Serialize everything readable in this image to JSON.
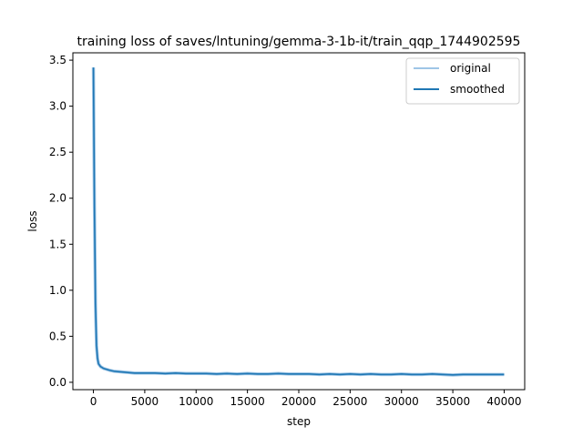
{
  "chart_data": {
    "type": "line",
    "title": "training loss of saves/lntuning/gemma-3-1b-it/train_qqp_1744902595",
    "xlabel": "step",
    "ylabel": "loss",
    "xlim": [
      -2000,
      42000
    ],
    "ylim": [
      -0.08,
      3.58
    ],
    "x_ticks": [
      0,
      5000,
      10000,
      15000,
      20000,
      25000,
      30000,
      35000,
      40000
    ],
    "y_ticks": [
      0.0,
      0.5,
      1.0,
      1.5,
      2.0,
      2.5,
      3.0,
      3.5
    ],
    "x_tick_labels": [
      "0",
      "5000",
      "10000",
      "15000",
      "20000",
      "25000",
      "30000",
      "35000",
      "40000"
    ],
    "y_tick_labels": [
      "0.0",
      "0.5",
      "1.0",
      "1.5",
      "2.0",
      "2.5",
      "3.0",
      "3.5"
    ],
    "legend": {
      "placement": "top-right"
    },
    "series": [
      {
        "name": "original",
        "color": "#9ec5e6",
        "x": [
          0,
          100,
          200,
          300,
          400,
          500,
          700,
          1000,
          1300,
          1600,
          2000,
          2500,
          3000,
          3500,
          4000,
          5000,
          6000,
          7000,
          8000,
          9000,
          10000,
          11000,
          12000,
          13000,
          14000,
          15000,
          16000,
          17000,
          18000,
          19000,
          20000,
          21000,
          22000,
          23000,
          24000,
          25000,
          26000,
          27000,
          28000,
          29000,
          30000,
          31000,
          32000,
          33000,
          34000,
          35000,
          36000,
          37000,
          38000,
          39000,
          40000
        ],
        "y": [
          3.42,
          1.9,
          0.85,
          0.4,
          0.26,
          0.2,
          0.17,
          0.15,
          0.14,
          0.13,
          0.12,
          0.115,
          0.11,
          0.105,
          0.1,
          0.1,
          0.1,
          0.095,
          0.1,
          0.095,
          0.095,
          0.095,
          0.09,
          0.095,
          0.09,
          0.095,
          0.09,
          0.09,
          0.095,
          0.09,
          0.09,
          0.09,
          0.085,
          0.09,
          0.085,
          0.09,
          0.085,
          0.09,
          0.085,
          0.085,
          0.09,
          0.085,
          0.085,
          0.09,
          0.085,
          0.08,
          0.085,
          0.085,
          0.085,
          0.085,
          0.085
        ]
      },
      {
        "name": "smoothed",
        "color": "#1f77b4",
        "x": [
          0,
          100,
          200,
          300,
          400,
          500,
          700,
          1000,
          1300,
          1600,
          2000,
          2500,
          3000,
          3500,
          4000,
          5000,
          6000,
          7000,
          8000,
          9000,
          10000,
          11000,
          12000,
          13000,
          14000,
          15000,
          16000,
          17000,
          18000,
          19000,
          20000,
          21000,
          22000,
          23000,
          24000,
          25000,
          26000,
          27000,
          28000,
          29000,
          30000,
          31000,
          32000,
          33000,
          34000,
          35000,
          36000,
          37000,
          38000,
          39000,
          40000
        ],
        "y": [
          3.42,
          1.9,
          0.85,
          0.4,
          0.26,
          0.2,
          0.17,
          0.15,
          0.14,
          0.13,
          0.12,
          0.115,
          0.11,
          0.105,
          0.1,
          0.1,
          0.1,
          0.095,
          0.1,
          0.095,
          0.095,
          0.095,
          0.09,
          0.095,
          0.09,
          0.095,
          0.09,
          0.09,
          0.095,
          0.09,
          0.09,
          0.09,
          0.085,
          0.09,
          0.085,
          0.09,
          0.085,
          0.09,
          0.085,
          0.085,
          0.09,
          0.085,
          0.085,
          0.09,
          0.085,
          0.08,
          0.085,
          0.085,
          0.085,
          0.085,
          0.085
        ]
      }
    ]
  }
}
